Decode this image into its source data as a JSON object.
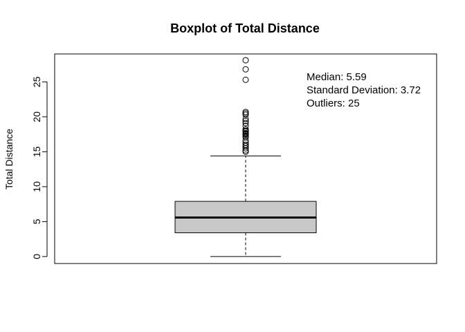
{
  "chart_data": {
    "type": "boxplot",
    "title": "Boxplot of Total Distance",
    "xlabel": "",
    "ylabel": "Total Distance",
    "ylim": [
      -1,
      29
    ],
    "yticks": [
      0,
      5,
      10,
      15,
      20,
      25
    ],
    "grid": false,
    "box_color": "#c8c8c8",
    "stats": {
      "whisker_low": 0,
      "q1": 3.4,
      "median": 5.59,
      "q3": 7.9,
      "whisker_high": 14.4
    },
    "outliers": [
      15.0,
      15.2,
      15.5,
      15.8,
      16.0,
      16.3,
      16.6,
      17.1,
      17.3,
      17.5,
      17.6,
      17.7,
      17.9,
      18.0,
      18.2,
      18.7,
      19.1,
      19.4,
      19.7,
      20.3,
      20.5,
      20.7,
      25.3,
      26.8,
      28.1
    ],
    "annotations": [
      "Median: 5.59",
      "Standard Deviation: 3.72",
      "Outliers: 25"
    ]
  }
}
